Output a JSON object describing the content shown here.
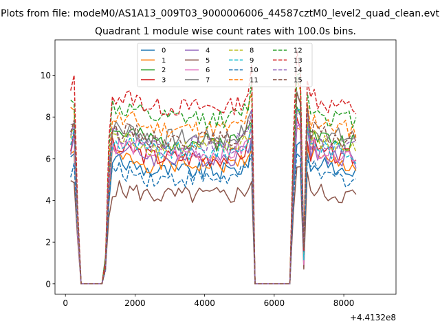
{
  "chart_data": {
    "type": "line",
    "suptitle": "Plots from file: modeM0/AS1A13_009T03_9000006006_44587cztM0_level2_quad_clean.evt",
    "title": "Quadrant 1 module wise count rates with 100.0s bins.",
    "xlabel": "",
    "ylabel": "",
    "x_offset_label": "+4.4132e8",
    "xlim": [
      -300,
      9500
    ],
    "ylim": [
      -0.5,
      11.7
    ],
    "x_ticks": [
      0,
      2000,
      4000,
      6000,
      8000
    ],
    "x_tick_labels": [
      "0",
      "2000",
      "4000",
      "6000",
      "8000"
    ],
    "y_ticks": [
      0,
      2,
      4,
      6,
      8,
      10
    ],
    "y_tick_labels": [
      "0",
      "2",
      "4",
      "6",
      "8",
      "10"
    ],
    "grid": false,
    "legend_position": "upper center",
    "legend_columns": 4,
    "x_start": 150,
    "x_step": 100,
    "base_shape": [
      1.0,
      1.05,
      0.4,
      0,
      0,
      0,
      0,
      0,
      0,
      0,
      0.15,
      0.72,
      1.0,
      0.98,
      0.98,
      0.96,
      0.97,
      0.97,
      0.97,
      0.96,
      0.95,
      0.94,
      0.93,
      0.93,
      0.92,
      0.92,
      0.92,
      0.92,
      0.92,
      0.92,
      0.92,
      0.92,
      0.92,
      0.92,
      0.92,
      0.92,
      0.92,
      0.92,
      0.92,
      0.92,
      0.92,
      0.92,
      0.92,
      0.92,
      0.92,
      0.92,
      0.92,
      0.93,
      0.94,
      0.95,
      0.97,
      1.0,
      1.1,
      0,
      0,
      0,
      0,
      0,
      0,
      0,
      0,
      0,
      0,
      0,
      0.75,
      1.2,
      1.15,
      0.2,
      1.1,
      0.95,
      1.0,
      0.95,
      0.95,
      0.95,
      0.93,
      0.93,
      0.93,
      0.93,
      0.92,
      0.92,
      0.92,
      0.92,
      0.9
    ],
    "series_levels": [
      5.9,
      6.2,
      7.4,
      6.6,
      6.6,
      4.6,
      6.8,
      7.6,
      7.1,
      6.9,
      5.5,
      8.1,
      8.6,
      9.2,
      7.2,
      7.5
    ],
    "series": [
      {
        "name": "0",
        "color": "#1f77b4",
        "dash": "solid"
      },
      {
        "name": "1",
        "color": "#ff7f0e",
        "dash": "solid"
      },
      {
        "name": "2",
        "color": "#2ca02c",
        "dash": "solid"
      },
      {
        "name": "3",
        "color": "#d62728",
        "dash": "solid"
      },
      {
        "name": "4",
        "color": "#9467bd",
        "dash": "solid"
      },
      {
        "name": "5",
        "color": "#8c564b",
        "dash": "solid"
      },
      {
        "name": "6",
        "color": "#e377c2",
        "dash": "solid"
      },
      {
        "name": "7",
        "color": "#7f7f7f",
        "dash": "solid"
      },
      {
        "name": "8",
        "color": "#bcbd22",
        "dash": "dashed"
      },
      {
        "name": "9",
        "color": "#17becf",
        "dash": "dashed"
      },
      {
        "name": "10",
        "color": "#1f77b4",
        "dash": "dashed"
      },
      {
        "name": "11",
        "color": "#ff7f0e",
        "dash": "dashed"
      },
      {
        "name": "12",
        "color": "#2ca02c",
        "dash": "dashed"
      },
      {
        "name": "13",
        "color": "#d62728",
        "dash": "dashed"
      },
      {
        "name": "14",
        "color": "#9467bd",
        "dash": "dashed"
      },
      {
        "name": "15",
        "color": "#8c564b",
        "dash": "dashed"
      }
    ]
  }
}
